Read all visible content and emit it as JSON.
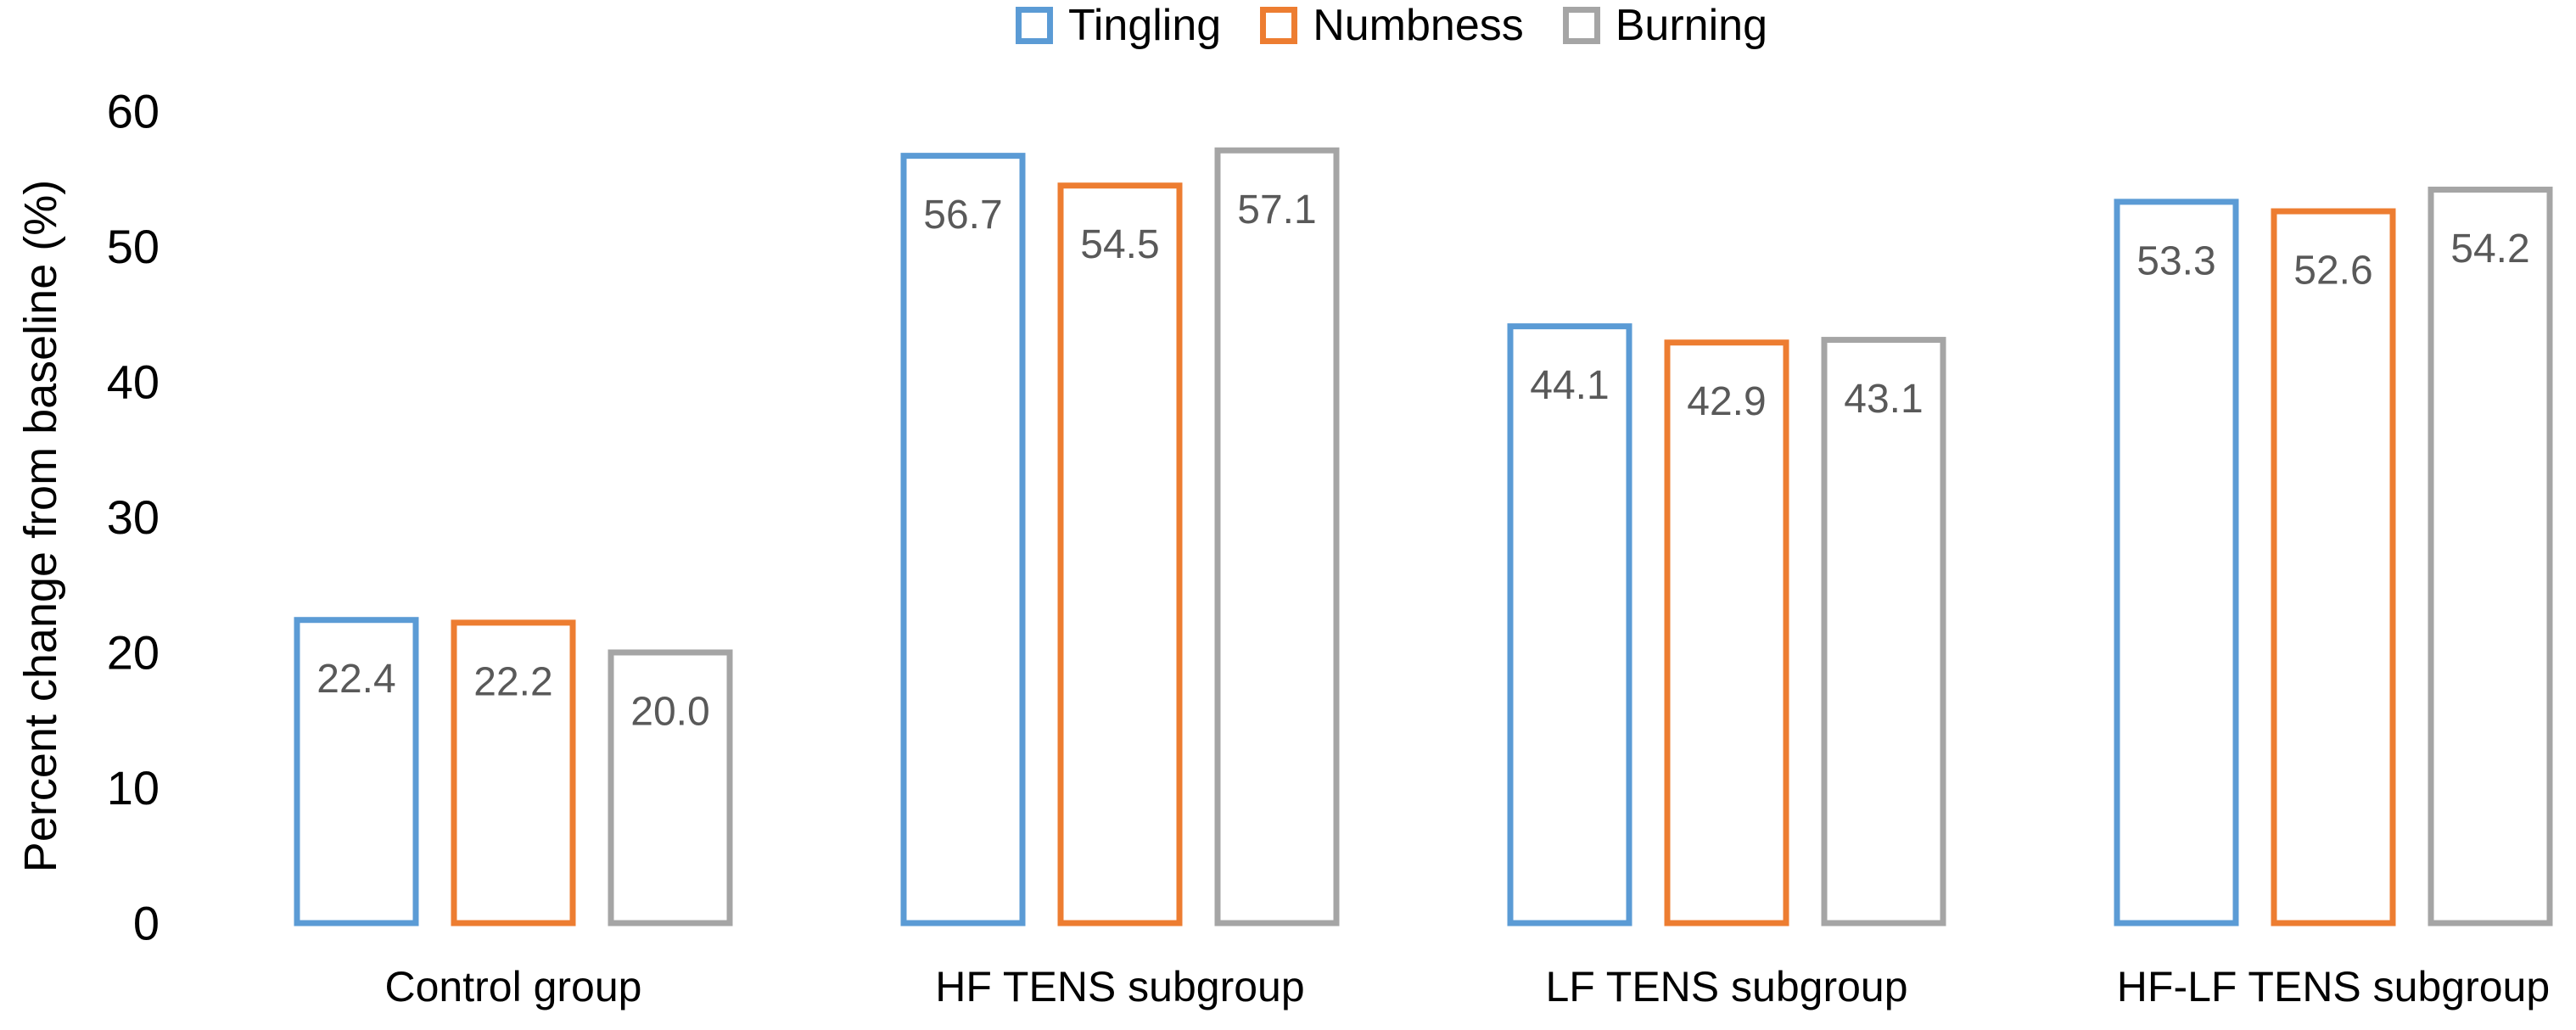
{
  "chart_data": {
    "type": "bar",
    "title": "",
    "categories": [
      "Control group",
      "HF TENS subgroup",
      "LF TENS subgroup",
      "HF-LF TENS subgroup"
    ],
    "series": [
      {
        "name": "Tingling",
        "color": "#5B9BD5",
        "values": [
          22.4,
          56.7,
          44.1,
          53.3
        ],
        "labels": [
          "22.4",
          "56.7",
          "44.1",
          "53.3"
        ]
      },
      {
        "name": "Numbness",
        "color": "#ED7D31",
        "values": [
          22.2,
          54.5,
          42.9,
          52.6
        ],
        "labels": [
          "22.2",
          "54.5",
          "42.9",
          "52.6"
        ]
      },
      {
        "name": "Burning",
        "color": "#A5A5A5",
        "values": [
          20.0,
          57.1,
          43.1,
          54.2
        ],
        "labels": [
          "20.0",
          "57.1",
          "43.1",
          "54.2"
        ]
      }
    ],
    "xlabel": "",
    "ylabel": "Percent change from baseline (%)",
    "ylim": [
      0,
      60
    ],
    "yticks": [
      "0",
      "10",
      "20",
      "30",
      "40",
      "50",
      "60"
    ],
    "grid": false,
    "axis_lines": false,
    "bar_style": "outlined-hollow",
    "data_label_position": "inside-end",
    "data_label_color": "#595959",
    "axis_text_color": "#000000",
    "legend_position": "top-center"
  }
}
